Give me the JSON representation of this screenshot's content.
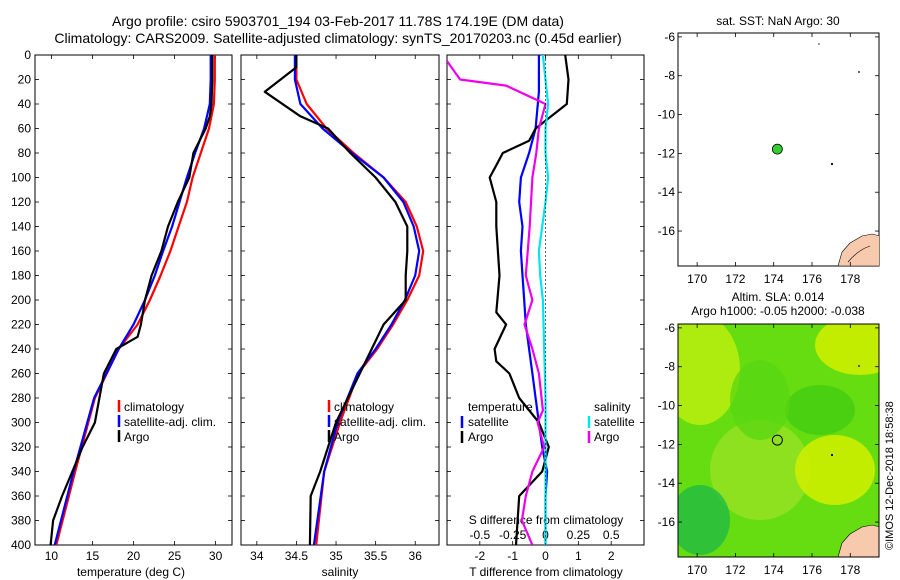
{
  "header": {
    "title_line1": "Argo profile: csiro 5903701_194 03-Feb-2017 11.78S 174.19E (DM data)",
    "title_line2": "Climatology: CARS2009. Satellite-adjusted climatology: synTS_20170203.nc (0.45d earlier)"
  },
  "colors": {
    "climatology": "#ff0000",
    "satellite": "#0000ff",
    "argo": "#000000",
    "sal_satellite": "#00e5ee",
    "sal_argo": "#ee00ee",
    "land": "#f7c9ad",
    "sla_green": "#33cc00",
    "sla_yellow": "#ccee00"
  },
  "chart_data": [
    {
      "type": "line",
      "id": "temperature",
      "xlabel": "temperature (deg C)",
      "ylim": [
        400,
        0
      ],
      "xlim": [
        8,
        32
      ],
      "xticks": [
        10,
        15,
        20,
        25,
        30
      ],
      "yticks": [
        0,
        20,
        40,
        60,
        80,
        100,
        120,
        140,
        160,
        180,
        200,
        220,
        240,
        260,
        280,
        300,
        320,
        340,
        360,
        380,
        400
      ],
      "legend": [
        "climatology",
        "satellite-adj. clim.",
        "Argo"
      ],
      "series": [
        {
          "name": "climatology",
          "color_key": "climatology",
          "x": [
            29.9,
            29.9,
            29.8,
            29.2,
            28.2,
            27.2,
            26.5,
            25.5,
            24.5,
            23.3,
            22.0,
            20.5,
            18.2,
            15.3,
            12.9,
            10.6
          ],
          "y": [
            0,
            20,
            40,
            60,
            80,
            100,
            120,
            140,
            160,
            180,
            200,
            220,
            240,
            280,
            340,
            400
          ]
        },
        {
          "name": "satellite-adj. clim.",
          "color_key": "satellite",
          "x": [
            29.4,
            29.4,
            29.3,
            28.6,
            27.5,
            26.5,
            25.6,
            24.7,
            23.6,
            22.6,
            21.4,
            20.0,
            18.2,
            15.2,
            12.7,
            10.4
          ],
          "y": [
            0,
            20,
            40,
            60,
            80,
            100,
            120,
            140,
            160,
            180,
            200,
            220,
            240,
            280,
            340,
            400
          ]
        },
        {
          "name": "Argo",
          "color_key": "argo",
          "x": [
            29.6,
            29.6,
            29.5,
            29.3,
            28.8,
            27.3,
            26.8,
            25.4,
            24.2,
            23.4,
            22.2,
            21.4,
            20.9,
            20.5,
            17.9,
            16.4,
            15.3,
            13.8,
            11.3,
            10.2,
            9.9
          ],
          "y": [
            0,
            20,
            40,
            50,
            60,
            80,
            100,
            120,
            140,
            160,
            180,
            200,
            220,
            230,
            240,
            260,
            300,
            320,
            360,
            380,
            400
          ]
        }
      ]
    },
    {
      "type": "line",
      "id": "salinity",
      "xlabel": "salinity",
      "ylim": [
        400,
        0
      ],
      "xlim": [
        33.8,
        36.3
      ],
      "xticks": [
        34,
        34.5,
        35,
        35.5,
        36
      ],
      "xticklabels": [
        "34",
        "34.5",
        "35",
        "35.5",
        "36"
      ],
      "legend": [
        "climatology",
        "satellite-adj. clim.",
        "Argo"
      ],
      "series": [
        {
          "name": "climatology",
          "color_key": "climatology",
          "x": [
            34.5,
            34.5,
            34.63,
            34.88,
            35.22,
            35.6,
            35.88,
            36.02,
            36.1,
            36.05,
            35.9,
            35.72,
            35.52,
            35.28,
            35.05,
            34.85,
            34.75
          ],
          "y": [
            0,
            20,
            40,
            60,
            80,
            100,
            120,
            140,
            160,
            180,
            200,
            220,
            240,
            260,
            300,
            340,
            400
          ]
        },
        {
          "name": "satellite-adj. clim.",
          "color_key": "satellite",
          "x": [
            34.48,
            34.48,
            34.55,
            34.83,
            35.2,
            35.6,
            35.85,
            35.98,
            36.05,
            36.0,
            35.87,
            35.7,
            35.5,
            35.27,
            35.02,
            34.85,
            34.72
          ],
          "y": [
            0,
            20,
            40,
            60,
            80,
            100,
            120,
            140,
            160,
            180,
            200,
            220,
            240,
            260,
            300,
            340,
            400
          ]
        },
        {
          "name": "Argo",
          "color_key": "argo",
          "x": [
            34.5,
            34.5,
            34.1,
            34.55,
            34.9,
            35.18,
            35.5,
            35.75,
            35.9,
            35.9,
            35.88,
            35.88,
            35.6,
            35.45,
            35.15,
            35.0,
            34.8,
            34.68,
            34.67
          ],
          "y": [
            0,
            10,
            30,
            50,
            60,
            80,
            100,
            120,
            140,
            160,
            180,
            200,
            220,
            240,
            280,
            300,
            340,
            360,
            400
          ]
        }
      ]
    },
    {
      "type": "line",
      "id": "difference",
      "xlabel": "T difference from climatology",
      "x2label": "S difference from climatology",
      "ylim": [
        400,
        0
      ],
      "xlim": [
        -3,
        3
      ],
      "xticks": [
        -2,
        -1,
        0,
        1,
        2
      ],
      "x2lim": [
        -0.75,
        0.75
      ],
      "x2ticks": [
        -0.5,
        -0.25,
        0,
        0.25,
        0.5
      ],
      "x2ticklabels": [
        "-0.5",
        "-0.25",
        "0",
        "0.25",
        "0.5"
      ],
      "legend_temperature": [
        "temperature",
        "satellite",
        "Argo"
      ],
      "legend_salinity": [
        "salinity",
        "satellite",
        "Argo"
      ],
      "series": [
        {
          "name": "T satellite",
          "color_key": "satellite",
          "axis": "T",
          "x": [
            -0.2,
            -0.2,
            -0.3,
            -0.5,
            -0.75,
            -0.8,
            -0.7,
            -0.75,
            -0.7,
            -0.65,
            -0.6,
            -0.5,
            -0.4,
            -0.3,
            -0.2,
            -0.1,
            0.05,
            0.0,
            0.0
          ],
          "y": [
            0,
            30,
            60,
            80,
            100,
            120,
            140,
            160,
            180,
            200,
            220,
            240,
            260,
            280,
            300,
            320,
            340,
            360,
            400
          ]
        },
        {
          "name": "T Argo",
          "color_key": "argo",
          "axis": "T",
          "x": [
            0.6,
            0.7,
            0.65,
            -0.3,
            -0.5,
            -1.3,
            -1.5,
            -1.7,
            -1.5,
            -1.5,
            -1.4,
            -1.5,
            -1.2,
            -1.55,
            -1.5,
            -1.1,
            -0.8,
            -0.2,
            0.1,
            -0.1,
            -0.8,
            -0.9
          ],
          "y": [
            0,
            20,
            40,
            60,
            70,
            80,
            90,
            100,
            120,
            140,
            180,
            210,
            220,
            240,
            250,
            260,
            280,
            300,
            320,
            340,
            360,
            400
          ]
        },
        {
          "name": "S satellite",
          "color_key": "sal_satellite",
          "axis": "S",
          "x": [
            -0.02,
            0.0,
            0.02,
            0.0,
            0.0,
            0.02,
            0.0,
            -0.05,
            -0.04,
            -0.02,
            -0.01,
            0.0,
            0.0,
            0.0,
            0.0,
            0.0
          ],
          "y": [
            0,
            20,
            40,
            60,
            80,
            100,
            120,
            160,
            180,
            200,
            240,
            280,
            320,
            340,
            360,
            400
          ]
        },
        {
          "name": "S Argo",
          "color_key": "sal_argo",
          "axis": "S",
          "x": [
            -0.75,
            -0.65,
            -0.3,
            0.0,
            -0.05,
            -0.07,
            -0.1,
            -0.12,
            -0.15,
            -0.1,
            -0.16,
            -0.1,
            -0.05,
            -0.02,
            -0.06,
            -0.01,
            -0.1,
            -0.15,
            -0.18,
            -0.1
          ],
          "y": [
            5,
            20,
            25,
            40,
            60,
            80,
            100,
            140,
            180,
            200,
            220,
            240,
            260,
            290,
            300,
            320,
            340,
            360,
            380,
            400
          ]
        }
      ]
    },
    {
      "type": "scatter",
      "id": "sst-map",
      "title": "sat. SST: NaN Argo: 30",
      "xlim": [
        169,
        179.5
      ],
      "ylim": [
        -17.8,
        -5.8
      ],
      "xticks": [
        170,
        172,
        174,
        176,
        178
      ],
      "yticks": [
        -6,
        -8,
        -10,
        -12,
        -14,
        -16
      ],
      "point": {
        "lon": 174.19,
        "lat": -11.78
      }
    },
    {
      "type": "heatmap",
      "id": "sla-map",
      "title": "Altim. SLA: 0.014",
      "subtitle": "Argo h1000: -0.05 h2000: -0.038",
      "xlim": [
        169,
        179.5
      ],
      "ylim": [
        -17.8,
        -5.8
      ],
      "xticks": [
        170,
        172,
        174,
        176,
        178
      ],
      "yticks": [
        -6,
        -8,
        -10,
        -12,
        -14,
        -16
      ],
      "point": {
        "lon": 174.19,
        "lat": -11.78
      }
    }
  ],
  "footer": {
    "credit": "©IMOS 12-Dec-2018 18:58:38"
  }
}
